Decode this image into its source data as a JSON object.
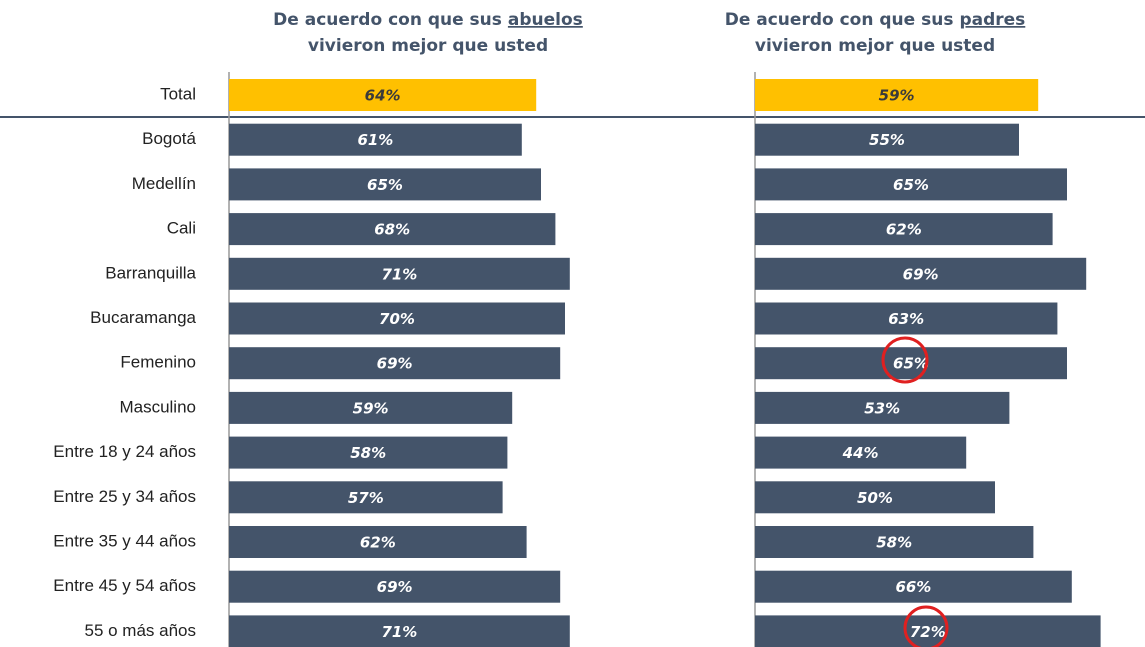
{
  "chart_data": [
    {
      "type": "bar",
      "title": {
        "before": "De acuerdo con que sus",
        "underlined": "abuelos",
        "second_line": "vivieron mejor que usted"
      },
      "categories": [
        "Total",
        "Bogotá",
        "Medellín",
        "Cali",
        "Barranquilla",
        "Bucaramanga",
        "Femenino",
        "Masculino",
        "Entre 18 y 24 años",
        "Entre 25 y 34 años",
        "Entre 35 y 44 años",
        "Entre 45 y 54 años",
        "55 o más años"
      ],
      "values": [
        64,
        61,
        65,
        68,
        71,
        70,
        69,
        59,
        58,
        57,
        62,
        69,
        71
      ],
      "value_labels": [
        "64%",
        "61%",
        "65%",
        "68%",
        "71%",
        "70%",
        "69%",
        "59%",
        "58%",
        "57%",
        "62%",
        "69%",
        "71%"
      ],
      "colors": [
        "#FFC000",
        "#44546A",
        "#44546A",
        "#44546A",
        "#44546A",
        "#44546A",
        "#44546A",
        "#44546A",
        "#44546A",
        "#44546A",
        "#44546A",
        "#44546A",
        "#44546A"
      ]
    },
    {
      "type": "bar",
      "title": {
        "before": "De acuerdo con que sus",
        "underlined": "padres",
        "second_line": "vivieron mejor que usted"
      },
      "values": [
        59,
        55,
        65,
        62,
        69,
        63,
        65,
        53,
        44,
        50,
        58,
        66,
        72
      ],
      "value_labels": [
        "59%",
        "55%",
        "65%",
        "62%",
        "69%",
        "63%",
        "65%",
        "53%",
        "44%",
        "50%",
        "58%",
        "66%",
        "72%"
      ],
      "colors": [
        "#FFC000",
        "#44546A",
        "#44546A",
        "#44546A",
        "#44546A",
        "#44546A",
        "#44546A",
        "#44546A",
        "#44546A",
        "#44546A",
        "#44546A",
        "#44546A",
        "#44546A"
      ]
    }
  ]
}
